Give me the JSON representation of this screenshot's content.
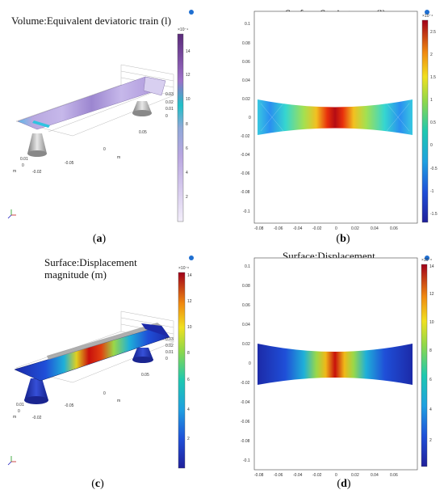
{
  "panels": {
    "a": {
      "title": "Volume:Equivalent deviatoric train (l)",
      "caption_letter": "a",
      "colorbar_exponent": "×10⁻⁴",
      "colorbar_ticks": [
        "14",
        "12",
        "10",
        "8",
        "6",
        "4",
        "2"
      ],
      "axis_ticks": [
        "0.03",
        "0.02",
        "0.01",
        "0",
        "0.05",
        "0",
        "-0.05",
        "0.01",
        "0",
        "-0.02"
      ],
      "axis_unit": "m"
    },
    "b": {
      "title": "Surface:Strain tensor (l)",
      "caption_letter": "b",
      "colorbar_exponent": "×10⁻⁴",
      "colorbar_ticks": [
        "2.5",
        "2",
        "1.5",
        "1",
        "0.5",
        "0",
        "-0.5",
        "-1",
        "-1.5"
      ],
      "y_ticks": [
        "0.1",
        "0.08",
        "0.06",
        "0.04",
        "0.02",
        "0",
        "-0.02",
        "-0.04",
        "-0.06",
        "-0.08",
        "-0.1"
      ],
      "x_ticks": [
        "-0.08",
        "-0.06",
        "-0.04",
        "-0.02",
        "0",
        "0.02",
        "0.04",
        "0.06"
      ]
    },
    "c": {
      "title": "Surface:Displacement\nmagnitude (m)",
      "caption_letter": "c",
      "colorbar_exponent": "×10⁻⁶",
      "colorbar_ticks": [
        "14",
        "12",
        "10",
        "8",
        "6",
        "4",
        "2"
      ],
      "axis_ticks": [
        "0.03",
        "0.02",
        "0.01",
        "0",
        "0.05",
        "0",
        "-0.05",
        "0.01",
        "0",
        "-0.02"
      ],
      "axis_unit": "m"
    },
    "d": {
      "title": "Surface:Displacement\nmagnitude (m)",
      "caption_letter": "d",
      "colorbar_exponent": "×10⁻⁶",
      "colorbar_ticks": [
        "14",
        "12",
        "10",
        "8",
        "6",
        "4",
        "2"
      ],
      "y_ticks": [
        "0.1",
        "0.08",
        "0.06",
        "0.04",
        "0.02",
        "0",
        "-0.02",
        "-0.04",
        "-0.06",
        "-0.08",
        "-0.1"
      ],
      "x_ticks": [
        "-0.08",
        "-0.06",
        "-0.04",
        "-0.02",
        "0",
        "0.02",
        "0.04",
        "0.06"
      ]
    }
  },
  "colors": {
    "jet_low": "#1a1a8c",
    "jet_mid": "#1ec8b0",
    "jet_high": "#b4001a",
    "purple_low": "#ede6f5",
    "purple_high": "#8c4aa8",
    "logo": "#1f6fd1"
  }
}
